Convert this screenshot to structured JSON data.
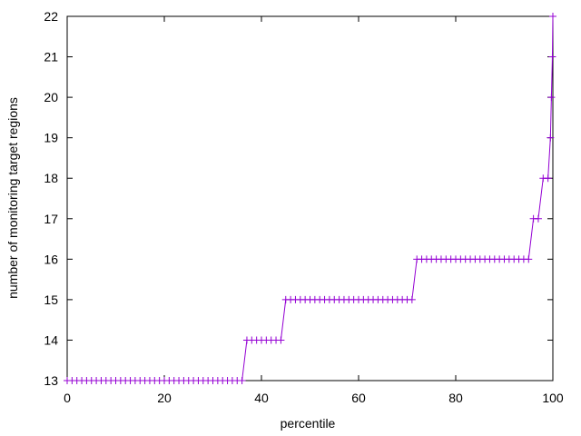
{
  "chart_data": {
    "type": "line",
    "xlabel": "percentile",
    "ylabel": "number of monitoring target regions",
    "xlim": [
      0,
      100
    ],
    "xticks": [
      0,
      20,
      40,
      60,
      80,
      100
    ],
    "ylim": [
      13,
      22
    ],
    "yticks": [
      13,
      14,
      15,
      16,
      17,
      18,
      19,
      20,
      21,
      22
    ],
    "series": [
      {
        "color": "#9400d3",
        "x": [
          0,
          1,
          2,
          3,
          4,
          5,
          6,
          7,
          8,
          9,
          10,
          11,
          12,
          13,
          14,
          15,
          16,
          17,
          18,
          19,
          20,
          21,
          22,
          23,
          24,
          25,
          26,
          27,
          28,
          29,
          30,
          31,
          32,
          33,
          34,
          35,
          36,
          37,
          38,
          39,
          40,
          41,
          42,
          43,
          44,
          45,
          46,
          47,
          48,
          49,
          50,
          51,
          52,
          53,
          54,
          55,
          56,
          57,
          58,
          59,
          60,
          61,
          62,
          63,
          64,
          65,
          66,
          67,
          68,
          69,
          70,
          71,
          72,
          73,
          74,
          75,
          76,
          77,
          78,
          79,
          80,
          81,
          82,
          83,
          84,
          85,
          86,
          87,
          88,
          89,
          90,
          91,
          92,
          93,
          94,
          95,
          96,
          97,
          98,
          99,
          99.5,
          99.7,
          99.9,
          100
        ],
        "values": [
          13,
          13,
          13,
          13,
          13,
          13,
          13,
          13,
          13,
          13,
          13,
          13,
          13,
          13,
          13,
          13,
          13,
          13,
          13,
          13,
          13,
          13,
          13,
          13,
          13,
          13,
          13,
          13,
          13,
          13,
          13,
          13,
          13,
          13,
          13,
          13,
          13,
          14,
          14,
          14,
          14,
          14,
          14,
          14,
          14,
          15,
          15,
          15,
          15,
          15,
          15,
          15,
          15,
          15,
          15,
          15,
          15,
          15,
          15,
          15,
          15,
          15,
          15,
          15,
          15,
          15,
          15,
          15,
          15,
          15,
          15,
          15,
          16,
          16,
          16,
          16,
          16,
          16,
          16,
          16,
          16,
          16,
          16,
          16,
          16,
          16,
          16,
          16,
          16,
          16,
          16,
          16,
          16,
          16,
          16,
          16,
          17,
          17,
          18,
          18,
          19,
          20,
          21,
          22
        ]
      }
    ]
  }
}
